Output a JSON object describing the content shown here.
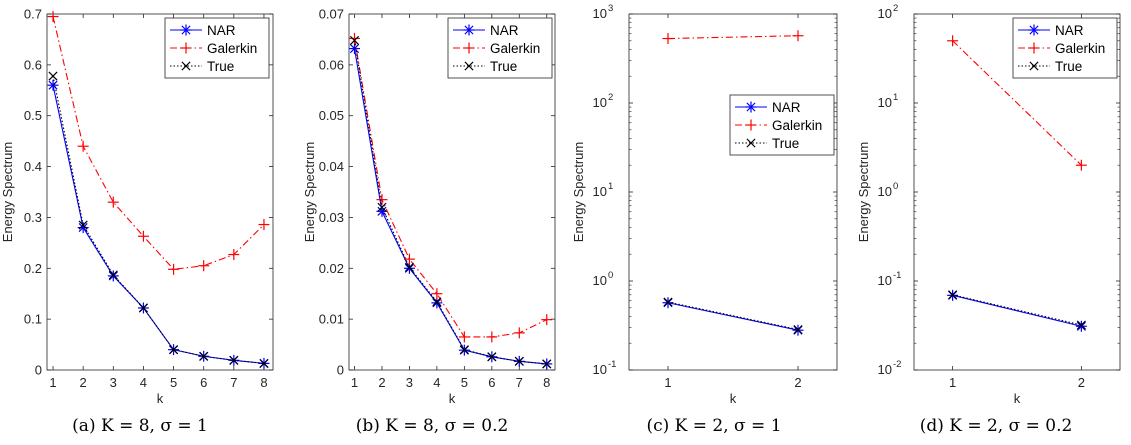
{
  "chart_data": [
    {
      "type": "line",
      "caption": "(a) K = 8, σ = 1",
      "xlabel": "k",
      "ylabel": "Energy Spectrum",
      "x": [
        1,
        2,
        3,
        4,
        5,
        6,
        7,
        8
      ],
      "xlim": [
        0.8,
        8.3
      ],
      "ylim": [
        0,
        0.7
      ],
      "yscale": "linear",
      "xticks": [
        "1",
        "2",
        "3",
        "4",
        "5",
        "6",
        "7",
        "8"
      ],
      "yticks": [
        "0",
        "0.1",
        "0.2",
        "0.3",
        "0.4",
        "0.5",
        "0.6",
        "0.7"
      ],
      "ytick_values": [
        0,
        0.1,
        0.2,
        0.3,
        0.4,
        0.5,
        0.6,
        0.7
      ],
      "legend_position": "top-right",
      "series": [
        {
          "name": "NAR",
          "values": [
            0.56,
            0.28,
            0.185,
            0.122,
            0.04,
            0.027,
            0.019,
            0.013
          ],
          "color": "#0000ff",
          "marker": "asterisk",
          "dash": "solid"
        },
        {
          "name": "Galerkin",
          "values": [
            0.695,
            0.44,
            0.33,
            0.263,
            0.198,
            0.205,
            0.227,
            0.286
          ],
          "color": "#ff0000",
          "marker": "plus",
          "dash": "dashdot"
        },
        {
          "name": "True",
          "values": [
            0.578,
            0.285,
            0.187,
            0.122,
            0.04,
            0.027,
            0.019,
            0.013
          ],
          "color": "#000000",
          "marker": "x",
          "dash": "dotted"
        }
      ]
    },
    {
      "type": "line",
      "caption": "(b) K = 8, σ = 0.2",
      "xlabel": "k",
      "ylabel": "Energy Spectrum",
      "x": [
        1,
        2,
        3,
        4,
        5,
        6,
        7,
        8
      ],
      "xlim": [
        0.8,
        8.3
      ],
      "ylim": [
        0,
        0.07
      ],
      "yscale": "linear",
      "xticks": [
        "1",
        "2",
        "3",
        "4",
        "5",
        "6",
        "7",
        "8"
      ],
      "yticks": [
        "0",
        "0.01",
        "0.02",
        "0.03",
        "0.04",
        "0.05",
        "0.06",
        "0.07"
      ],
      "ytick_values": [
        0,
        0.01,
        0.02,
        0.03,
        0.04,
        0.05,
        0.06,
        0.07
      ],
      "legend_position": "top-right",
      "series": [
        {
          "name": "NAR",
          "values": [
            0.0632,
            0.0312,
            0.02,
            0.0132,
            0.0039,
            0.0026,
            0.0017,
            0.0012
          ],
          "color": "#0000ff",
          "marker": "asterisk",
          "dash": "solid"
        },
        {
          "name": "Galerkin",
          "values": [
            0.0652,
            0.0335,
            0.0218,
            0.015,
            0.0065,
            0.0065,
            0.0073,
            0.0099
          ],
          "color": "#ff0000",
          "marker": "plus",
          "dash": "dashdot"
        },
        {
          "name": "True",
          "values": [
            0.0648,
            0.032,
            0.0202,
            0.0134,
            0.004,
            0.0026,
            0.0017,
            0.0012
          ],
          "color": "#000000",
          "marker": "x",
          "dash": "dotted"
        }
      ]
    },
    {
      "type": "line",
      "caption": "(c) K = 2, σ = 1",
      "xlabel": "k",
      "ylabel": "Energy Spectrum",
      "x": [
        1,
        2
      ],
      "xlim": [
        0.7,
        2.3
      ],
      "ylim": [
        0.1,
        1000
      ],
      "yscale": "log",
      "xticks": [
        "1",
        "2"
      ],
      "yticks": [
        "10^-1",
        "10^0",
        "10^1",
        "10^2",
        "10^3"
      ],
      "ytick_exponents": [
        "-1",
        "0",
        "1",
        "2",
        "3"
      ],
      "ytick_values": [
        0.1,
        1,
        10,
        100,
        1000
      ],
      "legend_position": "center-right",
      "series": [
        {
          "name": "NAR",
          "values": [
            0.57,
            0.28
          ],
          "color": "#0000ff",
          "marker": "asterisk",
          "dash": "solid"
        },
        {
          "name": "Galerkin",
          "values": [
            530,
            570
          ],
          "color": "#ff0000",
          "marker": "plus",
          "dash": "dashdot"
        },
        {
          "name": "True",
          "values": [
            0.58,
            0.285
          ],
          "color": "#000000",
          "marker": "x",
          "dash": "dotted"
        }
      ]
    },
    {
      "type": "line",
      "caption": "(d) K = 2, σ = 0.2",
      "xlabel": "k",
      "ylabel": "Energy Spectrum",
      "x": [
        1,
        2
      ],
      "xlim": [
        0.7,
        2.3
      ],
      "ylim": [
        0.01,
        100
      ],
      "yscale": "log",
      "xticks": [
        "1",
        "2"
      ],
      "yticks": [
        "10^-2",
        "10^-1",
        "10^0",
        "10^1",
        "10^2"
      ],
      "ytick_exponents": [
        "-2",
        "-1",
        "0",
        "1",
        "2"
      ],
      "ytick_values": [
        0.01,
        0.1,
        1,
        10,
        100
      ],
      "legend_position": "top-right",
      "series": [
        {
          "name": "NAR",
          "values": [
            0.069,
            0.031
          ],
          "color": "#0000ff",
          "marker": "asterisk",
          "dash": "solid"
        },
        {
          "name": "Galerkin",
          "values": [
            50,
            2
          ],
          "color": "#ff0000",
          "marker": "plus",
          "dash": "dashdot"
        },
        {
          "name": "True",
          "values": [
            0.07,
            0.032
          ],
          "color": "#000000",
          "marker": "x",
          "dash": "dotted"
        }
      ]
    }
  ]
}
